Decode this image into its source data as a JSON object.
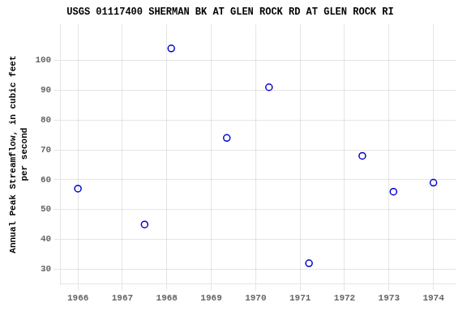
{
  "chart_data": {
    "type": "scatter",
    "title": "USGS 01117400 SHERMAN BK AT GLEN ROCK RD AT GLEN ROCK RI",
    "ylabel": [
      "Annual Peak Streamflow, in cubic feet",
      "per second"
    ],
    "x": [
      1966.0,
      1967.5,
      1968.1,
      1969.35,
      1970.3,
      1971.2,
      1972.4,
      1973.1,
      1974.0
    ],
    "values": [
      57,
      45,
      104,
      74,
      91,
      32,
      68,
      56,
      59
    ],
    "xlim": [
      1965.6,
      1974.5
    ],
    "ylim": [
      25,
      112
    ],
    "xticks": [
      1966,
      1967,
      1968,
      1969,
      1970,
      1971,
      1972,
      1973,
      1974
    ],
    "yticks": [
      30,
      40,
      50,
      60,
      70,
      80,
      90,
      100
    ],
    "color": "#0000cc",
    "marker": "circle",
    "grid": true
  }
}
